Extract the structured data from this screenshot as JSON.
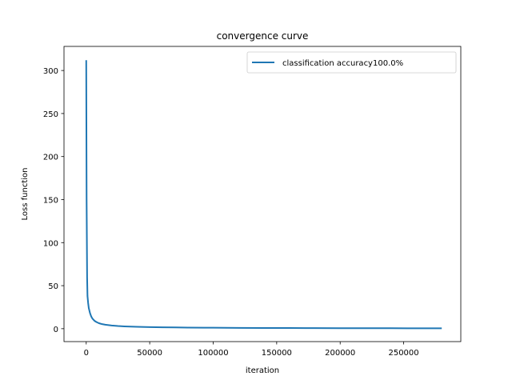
{
  "chart_data": {
    "type": "line",
    "title": "convergence curve",
    "xlabel": "iteration",
    "ylabel": "Loss function",
    "xlim": [
      -17500,
      295000
    ],
    "ylim": [
      -15,
      328
    ],
    "xticks": [
      0,
      50000,
      100000,
      150000,
      200000,
      250000
    ],
    "xtick_labels": [
      "0",
      "50000",
      "100000",
      "150000",
      "200000",
      "250000"
    ],
    "yticks": [
      0,
      50,
      100,
      150,
      200,
      250,
      300
    ],
    "ytick_labels": [
      "0",
      "50",
      "100",
      "150",
      "200",
      "250",
      "300"
    ],
    "grid": false,
    "legend_position": "top-right",
    "series": [
      {
        "name": "classification accuracy100.0%",
        "color": "#1f77b4",
        "x": [
          0,
          300,
          700,
          1000,
          1500,
          2000,
          3000,
          4000,
          5000,
          6500,
          8000,
          10000,
          12500,
          15000,
          20000,
          25000,
          30000,
          40000,
          50000,
          60000,
          70000,
          80000,
          100000,
          120000,
          140000,
          160000,
          180000,
          200000,
          220000,
          240000,
          260000,
          280000
        ],
        "y": [
          312,
          150,
          60,
          38,
          30,
          24,
          18,
          14,
          11.5,
          9.2,
          7.8,
          6.4,
          5.3,
          4.6,
          3.7,
          3.1,
          2.7,
          2.2,
          1.85,
          1.6,
          1.45,
          1.3,
          1.1,
          0.95,
          0.85,
          0.75,
          0.68,
          0.62,
          0.57,
          0.52,
          0.48,
          0.45
        ]
      }
    ]
  }
}
